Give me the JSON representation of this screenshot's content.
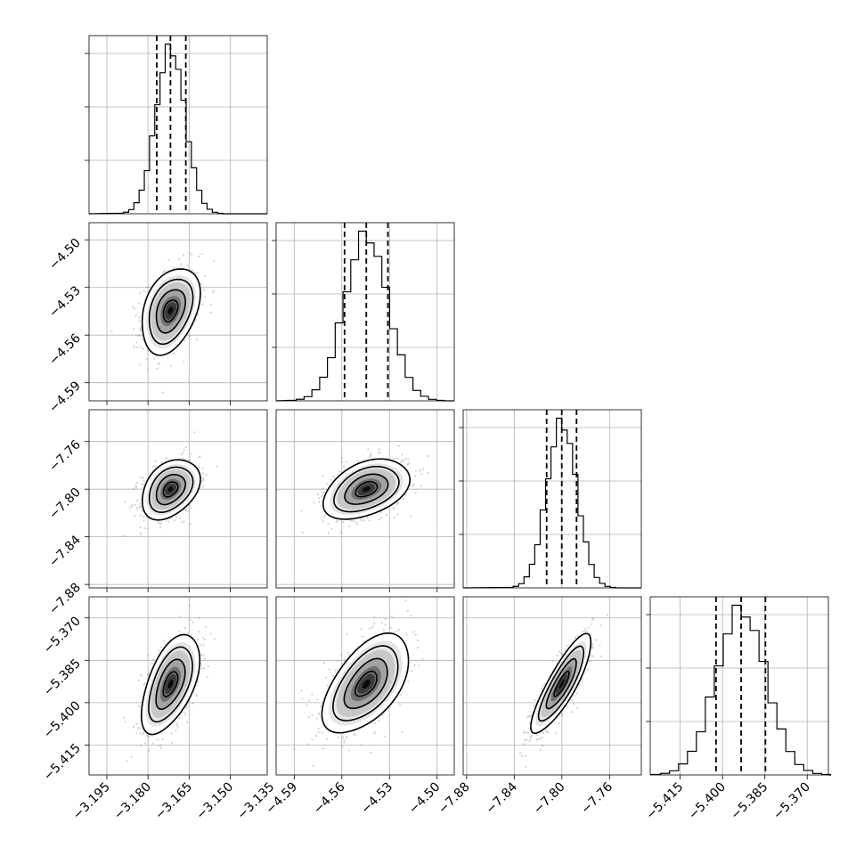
{
  "chart_data": {
    "type": "corner",
    "grid": true,
    "parameters": [
      {
        "index": 0,
        "median": -3.1718,
        "q16": -3.1768,
        "q84": -3.1662,
        "std": 0.0053,
        "range": [
          -3.2015,
          -3.1365
        ],
        "ticks": [
          -3.195,
          -3.18,
          -3.165,
          -3.15,
          -3.135
        ],
        "tick_labels": [
          "−3.195",
          "−3.180",
          "−3.165",
          "−3.150",
          "−3.135"
        ]
      },
      {
        "index": 1,
        "median": -4.5446,
        "q16": -4.5583,
        "q84": -4.531,
        "std": 0.0136,
        "range": [
          -4.6014,
          -4.4892
        ],
        "ticks": [
          -4.59,
          -4.56,
          -4.53,
          -4.5
        ],
        "tick_labels": [
          "−4.59",
          "−4.56",
          "−4.53",
          "−4.50"
        ]
      },
      {
        "index": 2,
        "median": -7.8001,
        "q16": -7.8128,
        "q84": -7.7877,
        "std": 0.0126,
        "range": [
          -7.8829,
          -7.7333
        ],
        "ticks": [
          -7.88,
          -7.84,
          -7.8,
          -7.76
        ],
        "tick_labels": [
          "−7.88",
          "−7.84",
          "−7.80",
          "−7.76"
        ]
      },
      {
        "index": 3,
        "median": -5.3934,
        "q16": -5.4023,
        "q84": -5.3848,
        "std": 0.0088,
        "range": [
          -5.4256,
          -5.3625
        ],
        "ticks": [
          -5.415,
          -5.4,
          -5.385,
          -5.37
        ],
        "tick_labels": [
          "−5.415",
          "−5.400",
          "−5.385",
          "−5.370"
        ]
      }
    ],
    "correlations": {
      "0-1": 0.35,
      "0-2": 0.35,
      "1-2": 0.4,
      "0-3": 0.55,
      "1-3": 0.55,
      "2-3": 0.85
    },
    "histogram_bins": 20,
    "contour_levels_sigma": [
      0.5,
      1.0,
      1.5,
      2.0
    ],
    "colors": {
      "frame": "#000000",
      "grid": "#b0b0b0",
      "points": "#7f7f7f",
      "density": "#000000"
    }
  }
}
